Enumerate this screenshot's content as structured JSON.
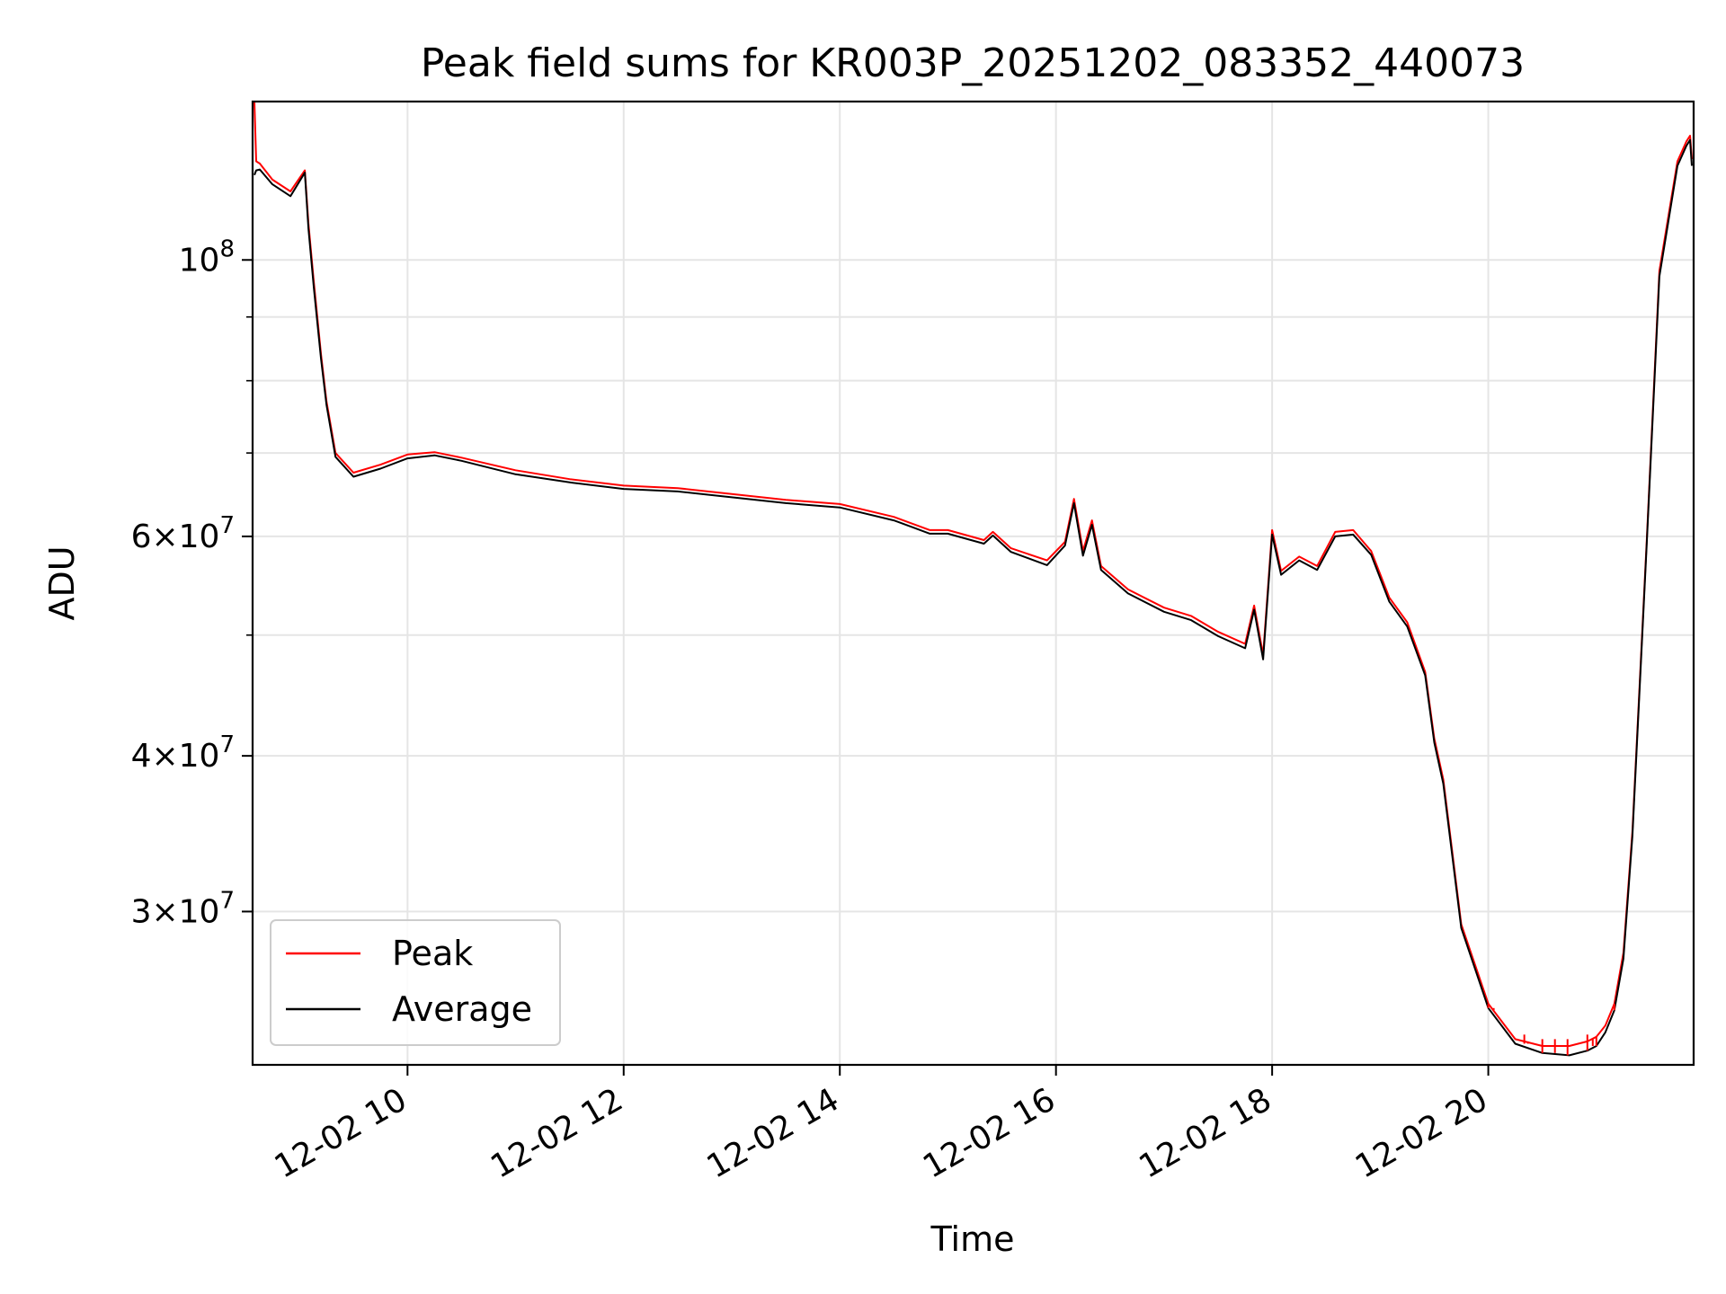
{
  "chart_data": {
    "type": "line",
    "title": "Peak field sums for KR003P_20251202_083352_440073",
    "xlabel": "Time",
    "ylabel": "ADU",
    "xlim": [
      "2025-12-02T08:34",
      "2025-12-02T21:54"
    ],
    "ylim": [
      22600000,
      134000000
    ],
    "yscale": "log",
    "grid": true,
    "legend_position": "lower left",
    "x_ticks": [
      "12-02 10",
      "12-02 12",
      "12-02 14",
      "12-02 16",
      "12-02 18",
      "12-02 20"
    ],
    "y_ticks": [
      {
        "value": 100000000,
        "base": "10",
        "exp": "8",
        "mantissa": ""
      },
      {
        "value": 60000000,
        "base": "10",
        "exp": "7",
        "mantissa": "6"
      },
      {
        "value": 40000000,
        "base": "10",
        "exp": "7",
        "mantissa": "4"
      },
      {
        "value": 30000000,
        "base": "10",
        "exp": "7",
        "mantissa": "3"
      }
    ],
    "y_minor_gridlines": [
      50000000,
      70000000,
      80000000,
      90000000
    ],
    "series": [
      {
        "name": "Peak",
        "color": "#ff0000",
        "x": [
          "2025-12-02T08:35",
          "2025-12-02T08:36",
          "2025-12-02T08:38",
          "2025-12-02T08:45",
          "2025-12-02T08:55",
          "2025-12-02T09:03",
          "2025-12-02T09:05",
          "2025-12-02T09:08",
          "2025-12-02T09:12",
          "2025-12-02T09:15",
          "2025-12-02T09:20",
          "2025-12-02T09:30",
          "2025-12-02T09:45",
          "2025-12-02T10:00",
          "2025-12-02T10:15",
          "2025-12-02T10:30",
          "2025-12-02T11:00",
          "2025-12-02T11:30",
          "2025-12-02T12:00",
          "2025-12-02T12:30",
          "2025-12-02T13:00",
          "2025-12-02T13:30",
          "2025-12-02T14:00",
          "2025-12-02T14:30",
          "2025-12-02T14:50",
          "2025-12-02T15:00",
          "2025-12-02T15:20",
          "2025-12-02T15:25",
          "2025-12-02T15:35",
          "2025-12-02T15:55",
          "2025-12-02T16:05",
          "2025-12-02T16:10",
          "2025-12-02T16:15",
          "2025-12-02T16:20",
          "2025-12-02T16:25",
          "2025-12-02T16:40",
          "2025-12-02T17:00",
          "2025-12-02T17:15",
          "2025-12-02T17:30",
          "2025-12-02T17:45",
          "2025-12-02T17:50",
          "2025-12-02T17:55",
          "2025-12-02T18:00",
          "2025-12-02T18:05",
          "2025-12-02T18:15",
          "2025-12-02T18:25",
          "2025-12-02T18:35",
          "2025-12-02T18:45",
          "2025-12-02T18:55",
          "2025-12-02T19:05",
          "2025-12-02T19:15",
          "2025-12-02T19:25",
          "2025-12-02T19:30",
          "2025-12-02T19:35",
          "2025-12-02T19:45",
          "2025-12-02T20:00",
          "2025-12-02T20:15",
          "2025-12-02T20:30",
          "2025-12-02T20:45",
          "2025-12-02T20:55",
          "2025-12-02T21:00",
          "2025-12-02T21:05",
          "2025-12-02T21:10",
          "2025-12-02T21:15",
          "2025-12-02T21:20",
          "2025-12-02T21:28",
          "2025-12-02T21:35",
          "2025-12-02T21:45",
          "2025-12-02T21:50",
          "2025-12-02T21:52",
          "2025-12-02T21:53"
        ],
        "y": [
          134000000,
          120000000,
          119500000,
          116000000,
          113500000,
          118000000,
          107000000,
          96000000,
          84000000,
          77000000,
          70000000,
          67500000,
          68500000,
          69800000,
          70100000,
          69400000,
          67800000,
          66700000,
          65900000,
          65600000,
          64900000,
          64200000,
          63700000,
          62200000,
          60700000,
          60700000,
          59600000,
          60500000,
          58700000,
          57400000,
          59400000,
          64300000,
          58400000,
          61800000,
          56800000,
          54400000,
          52600000,
          51800000,
          50300000,
          49200000,
          52800000,
          48200000,
          60700000,
          56300000,
          57800000,
          56800000,
          60500000,
          60700000,
          58400000,
          53600000,
          51200000,
          46700000,
          41300000,
          38300000,
          29300000,
          25300000,
          23700000,
          23400000,
          23400000,
          23600000,
          23800000,
          24300000,
          25300000,
          27800000,
          34800000,
          59700000,
          98000000,
          120000000,
          124500000,
          125800000,
          120500000
        ]
      },
      {
        "name": "Average",
        "color": "#000000",
        "x": [
          "2025-12-02T08:35",
          "2025-12-02T08:36",
          "2025-12-02T08:38",
          "2025-12-02T08:45",
          "2025-12-02T08:55",
          "2025-12-02T09:03",
          "2025-12-02T09:05",
          "2025-12-02T09:08",
          "2025-12-02T09:12",
          "2025-12-02T09:15",
          "2025-12-02T09:20",
          "2025-12-02T09:30",
          "2025-12-02T09:45",
          "2025-12-02T10:00",
          "2025-12-02T10:15",
          "2025-12-02T10:30",
          "2025-12-02T11:00",
          "2025-12-02T11:30",
          "2025-12-02T12:00",
          "2025-12-02T12:30",
          "2025-12-02T13:00",
          "2025-12-02T13:30",
          "2025-12-02T14:00",
          "2025-12-02T14:30",
          "2025-12-02T14:50",
          "2025-12-02T15:00",
          "2025-12-02T15:20",
          "2025-12-02T15:25",
          "2025-12-02T15:35",
          "2025-12-02T15:55",
          "2025-12-02T16:05",
          "2025-12-02T16:10",
          "2025-12-02T16:15",
          "2025-12-02T16:20",
          "2025-12-02T16:25",
          "2025-12-02T16:40",
          "2025-12-02T17:00",
          "2025-12-02T17:15",
          "2025-12-02T17:30",
          "2025-12-02T17:45",
          "2025-12-02T17:50",
          "2025-12-02T17:55",
          "2025-12-02T18:00",
          "2025-12-02T18:05",
          "2025-12-02T18:15",
          "2025-12-02T18:25",
          "2025-12-02T18:35",
          "2025-12-02T18:45",
          "2025-12-02T18:55",
          "2025-12-02T19:05",
          "2025-12-02T19:15",
          "2025-12-02T19:25",
          "2025-12-02T19:30",
          "2025-12-02T19:35",
          "2025-12-02T19:45",
          "2025-12-02T20:00",
          "2025-12-02T20:15",
          "2025-12-02T20:30",
          "2025-12-02T20:45",
          "2025-12-02T20:55",
          "2025-12-02T21:00",
          "2025-12-02T21:05",
          "2025-12-02T21:10",
          "2025-12-02T21:15",
          "2025-12-02T21:20",
          "2025-12-02T21:28",
          "2025-12-02T21:35",
          "2025-12-02T21:45",
          "2025-12-02T21:50",
          "2025-12-02T21:52",
          "2025-12-02T21:53"
        ],
        "y": [
          117000000,
          118000000,
          118200000,
          115000000,
          112500000,
          117500000,
          106000000,
          95000000,
          83300000,
          76500000,
          69500000,
          67000000,
          68000000,
          69300000,
          69700000,
          69000000,
          67300000,
          66300000,
          65500000,
          65200000,
          64500000,
          63800000,
          63300000,
          61800000,
          60300000,
          60300000,
          59200000,
          60100000,
          58300000,
          56900000,
          59000000,
          63800000,
          57900000,
          61300000,
          56400000,
          54000000,
          52200000,
          51400000,
          49900000,
          48800000,
          52400000,
          47800000,
          60200000,
          55900000,
          57400000,
          56400000,
          60000000,
          60200000,
          58000000,
          53200000,
          50800000,
          46400000,
          41000000,
          38000000,
          29100000,
          25100000,
          23500000,
          23100000,
          23000000,
          23200000,
          23400000,
          24000000,
          25000000,
          27500000,
          34500000,
          59300000,
          97000000,
          119000000,
          123500000,
          124800000,
          119000000
        ]
      }
    ],
    "peak_spikes": [
      {
        "x": "2025-12-02T20:00",
        "y": 25300000
      },
      {
        "x": "2025-12-02T20:03",
        "y": 25000000
      },
      {
        "x": "2025-12-02T20:20",
        "y": 23900000
      },
      {
        "x": "2025-12-02T20:22",
        "y": 23600000
      },
      {
        "x": "2025-12-02T20:30",
        "y": 23700000
      },
      {
        "x": "2025-12-02T20:37",
        "y": 23700000
      },
      {
        "x": "2025-12-02T20:44",
        "y": 23700000
      },
      {
        "x": "2025-12-02T20:55",
        "y": 23900000
      },
      {
        "x": "2025-12-02T20:58",
        "y": 23700000
      },
      {
        "x": "2025-12-02T21:00",
        "y": 23800000
      },
      {
        "x": "2025-12-02T21:03",
        "y": 24000000
      },
      {
        "x": "2025-12-02T21:10",
        "y": 25300000
      }
    ]
  }
}
